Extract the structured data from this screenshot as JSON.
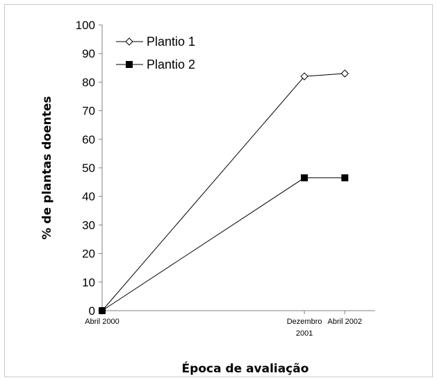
{
  "chart_data": {
    "type": "line",
    "xlabel": "Época de avaliação",
    "ylabel": "% de plantas doentes",
    "ylim": [
      0,
      100
    ],
    "yticks": [
      0,
      10,
      20,
      30,
      40,
      50,
      60,
      70,
      80,
      90,
      100
    ],
    "categories": [
      {
        "lines": [
          "Abril 2000"
        ],
        "month_index": 0
      },
      {
        "lines": [
          "Dezembro",
          "2001"
        ],
        "month_index": 20
      },
      {
        "lines": [
          "Abril 2002"
        ],
        "month_index": 24
      }
    ],
    "series": [
      {
        "name": "Plantio 1",
        "marker": "diamond-open",
        "color": "#000000",
        "values": [
          0,
          82,
          83
        ]
      },
      {
        "name": "Plantio 2",
        "marker": "square-filled",
        "color": "#000000",
        "values": [
          0,
          46.5,
          46.5
        ]
      }
    ],
    "grid": false,
    "legend_position": "top-left"
  }
}
